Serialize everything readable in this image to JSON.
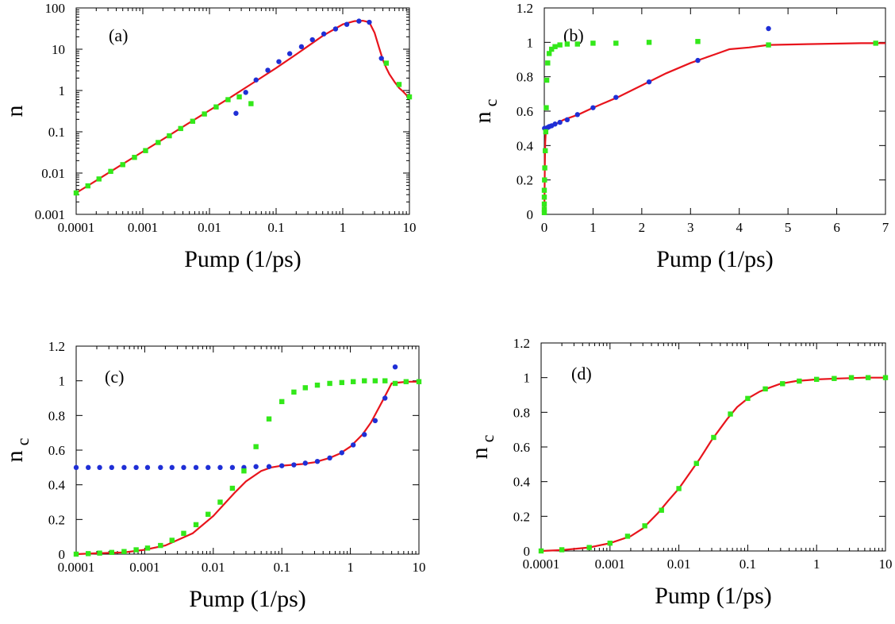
{
  "figure": {
    "colors": {
      "curve": "#e8141c",
      "circles": "#1f2fd6",
      "squares": "#33e81a",
      "axes": "#000000"
    }
  },
  "chart_data": [
    {
      "type": "scatter",
      "panel_label": "(a)",
      "xlabel": "Pump (1/ps)",
      "ylabel": "n",
      "ylabel_sub": "",
      "x_scale": "log",
      "y_scale": "log",
      "xlim": [
        0.0001,
        10
      ],
      "ylim": [
        0.001,
        100
      ],
      "xticks": [
        0.0001,
        0.001,
        0.01,
        0.1,
        1,
        10
      ],
      "xtick_labels": [
        "0.0001",
        "0.001",
        "0.01",
        "0.1",
        "1",
        "10"
      ],
      "yticks": [
        0.001,
        0.01,
        0.1,
        1,
        10,
        100
      ],
      "ytick_labels": [
        "0.001",
        "0.01",
        "0.1",
        "1",
        "10",
        "100"
      ],
      "series": [
        {
          "style": "line",
          "x": [
            0.0001,
            0.0002,
            0.0005,
            0.001,
            0.002,
            0.005,
            0.01,
            0.02,
            0.05,
            0.1,
            0.2,
            0.5,
            1,
            1.5,
            2,
            2.5,
            3,
            3.5,
            4,
            4.5,
            5,
            6,
            7,
            8,
            10
          ],
          "y": [
            0.0033,
            0.0066,
            0.0166,
            0.033,
            0.066,
            0.166,
            0.33,
            0.66,
            1.7,
            3.5,
            7.5,
            21,
            40,
            48,
            49,
            45,
            25,
            11,
            5.5,
            3.5,
            2.5,
            1.6,
            1.15,
            0.95,
            0.65
          ]
        },
        {
          "style": "circle",
          "x": [
            0.025,
            0.035,
            0.05,
            0.075,
            0.11,
            0.16,
            0.24,
            0.35,
            0.52,
            0.78,
            1.15,
            1.75,
            2.5,
            3.8
          ],
          "y": [
            0.28,
            0.9,
            1.8,
            3.1,
            5.0,
            7.8,
            11.5,
            17,
            23.5,
            31,
            40,
            48,
            45,
            6.0
          ]
        },
        {
          "style": "square",
          "x": [
            0.0001,
            0.00015,
            0.00022,
            0.00033,
            0.0005,
            0.00075,
            0.0011,
            0.0017,
            0.0025,
            0.0037,
            0.0056,
            0.0084,
            0.0126,
            0.019,
            0.028,
            0.042,
            4.5,
            7.0,
            10
          ],
          "y": [
            0.0033,
            0.0049,
            0.0072,
            0.011,
            0.016,
            0.024,
            0.035,
            0.055,
            0.08,
            0.12,
            0.18,
            0.27,
            0.4,
            0.6,
            0.7,
            0.48,
            4.6,
            1.4,
            0.7
          ]
        }
      ]
    },
    {
      "type": "scatter",
      "panel_label": "(b)",
      "xlabel": "Pump (1/ps)",
      "ylabel": "n",
      "ylabel_sub": "c",
      "x_scale": "linear",
      "y_scale": "linear",
      "xlim": [
        0,
        7
      ],
      "ylim": [
        0,
        1.2
      ],
      "xticks": [
        0,
        1,
        2,
        3,
        4,
        5,
        6,
        7
      ],
      "xtick_labels": [
        "0",
        "1",
        "2",
        "3",
        "4",
        "5",
        "6",
        "7"
      ],
      "yticks": [
        0,
        0.2,
        0.4,
        0.6,
        0.8,
        1,
        1.2
      ],
      "ytick_labels": [
        "0",
        "0.2",
        "0.4",
        "0.6",
        "0.8",
        "1",
        "1.2"
      ],
      "series": [
        {
          "style": "line",
          "x": [
            0,
            0.003,
            0.006,
            0.01,
            0.015,
            0.02,
            0.03,
            0.05,
            0.1,
            0.2,
            0.4,
            0.7,
            1.0,
            1.5,
            2.0,
            2.5,
            3.0,
            3.5,
            3.8,
            4.2,
            4.6,
            5.5,
            6.5,
            7.0
          ],
          "y": [
            0,
            0.08,
            0.15,
            0.25,
            0.35,
            0.42,
            0.47,
            0.495,
            0.505,
            0.52,
            0.55,
            0.58,
            0.62,
            0.68,
            0.75,
            0.82,
            0.88,
            0.93,
            0.96,
            0.97,
            0.985,
            0.99,
            0.995,
            0.995
          ]
        },
        {
          "style": "circle",
          "x": [
            0.005,
            0.02,
            0.04,
            0.07,
            0.1,
            0.15,
            0.22,
            0.32,
            0.47,
            0.68,
            1.0,
            1.47,
            2.15,
            3.15,
            4.6
          ],
          "y": [
            0.5,
            0.5,
            0.5,
            0.505,
            0.51,
            0.515,
            0.525,
            0.535,
            0.55,
            0.58,
            0.62,
            0.68,
            0.77,
            0.895,
            1.08
          ]
        },
        {
          "style": "square",
          "x": [
            0.0,
            0.0,
            0.0,
            0.0,
            0.0,
            0.005,
            0.01,
            0.02,
            0.03,
            0.04,
            0.05,
            0.07,
            0.1,
            0.15,
            0.22,
            0.32,
            0.47,
            0.68,
            1.0,
            1.47,
            2.15,
            3.15,
            4.6,
            6.8
          ],
          "y": [
            0.01,
            0.03,
            0.06,
            0.1,
            0.14,
            0.2,
            0.27,
            0.37,
            0.48,
            0.62,
            0.78,
            0.88,
            0.935,
            0.96,
            0.975,
            0.985,
            0.99,
            0.99,
            0.995,
            0.995,
            1.0,
            1.005,
            0.985,
            0.995
          ]
        }
      ]
    },
    {
      "type": "scatter",
      "panel_label": "(c)",
      "xlabel": "Pump (1/ps)",
      "ylabel": "n",
      "ylabel_sub": "c",
      "x_scale": "log",
      "y_scale": "linear",
      "xlim": [
        0.0001,
        10
      ],
      "ylim": [
        0,
        1.2
      ],
      "xticks": [
        0.0001,
        0.001,
        0.01,
        0.1,
        1,
        10
      ],
      "xtick_labels": [
        "0.0001",
        "0.001",
        "0.01",
        "0.1",
        "1",
        "10"
      ],
      "yticks": [
        0,
        0.2,
        0.4,
        0.6,
        0.8,
        1,
        1.2
      ],
      "ytick_labels": [
        "0",
        "0.2",
        "0.4",
        "0.6",
        "0.8",
        "1",
        "1.2"
      ],
      "series": [
        {
          "style": "line",
          "x": [
            0.0001,
            0.0002,
            0.0005,
            0.001,
            0.002,
            0.005,
            0.01,
            0.02,
            0.03,
            0.05,
            0.07,
            0.1,
            0.2,
            0.3,
            0.5,
            0.7,
            1.0,
            1.5,
            2.0,
            3.0,
            4.0,
            5.0,
            7.0,
            10
          ],
          "y": [
            0.0,
            0.005,
            0.01,
            0.025,
            0.05,
            0.12,
            0.22,
            0.35,
            0.42,
            0.48,
            0.5,
            0.51,
            0.52,
            0.53,
            0.555,
            0.58,
            0.62,
            0.69,
            0.76,
            0.89,
            0.985,
            0.99,
            0.995,
            0.995
          ]
        },
        {
          "style": "circle",
          "x": [
            0.0001,
            0.00015,
            0.00022,
            0.00033,
            0.0005,
            0.00075,
            0.0011,
            0.0017,
            0.0025,
            0.0037,
            0.0056,
            0.0084,
            0.0126,
            0.019,
            0.028,
            0.042,
            0.065,
            0.1,
            0.15,
            0.22,
            0.33,
            0.5,
            0.75,
            1.1,
            1.6,
            2.3,
            3.2,
            4.5
          ],
          "y": [
            0.5,
            0.5,
            0.5,
            0.5,
            0.5,
            0.5,
            0.5,
            0.5,
            0.5,
            0.5,
            0.5,
            0.5,
            0.5,
            0.5,
            0.5,
            0.505,
            0.505,
            0.51,
            0.515,
            0.525,
            0.535,
            0.555,
            0.585,
            0.63,
            0.69,
            0.77,
            0.9,
            1.08
          ]
        },
        {
          "style": "square",
          "x": [
            0.0001,
            0.00015,
            0.00022,
            0.00033,
            0.0005,
            0.00075,
            0.0011,
            0.0017,
            0.0025,
            0.0037,
            0.0056,
            0.0084,
            0.0126,
            0.019,
            0.028,
            0.042,
            0.065,
            0.1,
            0.15,
            0.22,
            0.33,
            0.5,
            0.75,
            1.1,
            1.6,
            2.3,
            3.2,
            4.5,
            6.5,
            10
          ],
          "y": [
            0.0,
            0.003,
            0.006,
            0.01,
            0.015,
            0.025,
            0.035,
            0.05,
            0.08,
            0.12,
            0.17,
            0.23,
            0.3,
            0.38,
            0.48,
            0.62,
            0.78,
            0.88,
            0.935,
            0.96,
            0.975,
            0.985,
            0.99,
            0.995,
            1.0,
            1.0,
            1.0,
            0.985,
            0.995,
            0.995
          ]
        }
      ]
    },
    {
      "type": "scatter",
      "panel_label": "(d)",
      "xlabel": "Pump (1/ps)",
      "ylabel": "n",
      "ylabel_sub": "c",
      "x_scale": "log",
      "y_scale": "linear",
      "xlim": [
        0.0001,
        10
      ],
      "ylim": [
        0,
        1.2
      ],
      "xticks": [
        0.0001,
        0.001,
        0.01,
        0.1,
        1,
        10
      ],
      "xtick_labels": [
        "0.0001",
        "0.001",
        "0.01",
        "0.1",
        "1",
        "10"
      ],
      "yticks": [
        0,
        0.2,
        0.4,
        0.6,
        0.8,
        1,
        1.2
      ],
      "ytick_labels": [
        "0",
        "0.2",
        "0.4",
        "0.6",
        "0.8",
        "1",
        "1.2"
      ],
      "series": [
        {
          "style": "line",
          "x": [
            0.0001,
            0.0002,
            0.0005,
            0.001,
            0.002,
            0.003,
            0.005,
            0.007,
            0.01,
            0.015,
            0.02,
            0.03,
            0.05,
            0.07,
            0.1,
            0.15,
            0.2,
            0.3,
            0.5,
            1,
            2,
            5,
            10
          ],
          "y": [
            0.0,
            0.005,
            0.02,
            0.045,
            0.085,
            0.13,
            0.22,
            0.29,
            0.36,
            0.46,
            0.53,
            0.64,
            0.76,
            0.83,
            0.88,
            0.92,
            0.94,
            0.965,
            0.98,
            0.99,
            0.995,
            1.0,
            1.0
          ]
        },
        {
          "style": "square",
          "x": [
            0.0001,
            0.0002,
            0.0005,
            0.001,
            0.0018,
            0.0032,
            0.0056,
            0.01,
            0.018,
            0.032,
            0.056,
            0.1,
            0.18,
            0.32,
            0.56,
            1.0,
            1.8,
            3.2,
            5.6,
            10
          ],
          "y": [
            0.0,
            0.007,
            0.02,
            0.045,
            0.085,
            0.145,
            0.235,
            0.36,
            0.505,
            0.655,
            0.79,
            0.88,
            0.935,
            0.965,
            0.98,
            0.99,
            0.995,
            1.0,
            1.0,
            1.0
          ]
        }
      ]
    }
  ]
}
